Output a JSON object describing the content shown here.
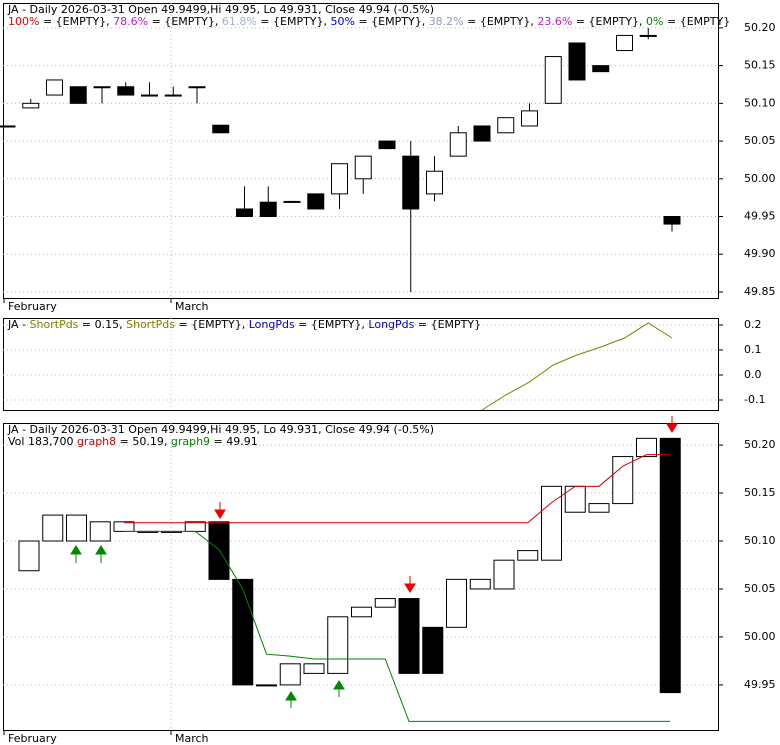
{
  "chart_data": [
    {
      "type": "candlestick",
      "header": [
        [
          {
            "text": "JA - Daily 2026-03-31 Open 49.9499,Hi 49.95, Lo 49.931, Close 49.94 (-0.5%)",
            "color": "#000000"
          }
        ],
        [
          {
            "text": "100%",
            "color": "#e00000"
          },
          {
            "text": " = {EMPTY}, ",
            "color": "#000000"
          },
          {
            "text": "78.6%",
            "color": "#c020c0"
          },
          {
            "text": " = {EMPTY}, ",
            "color": "#000000"
          },
          {
            "text": "61.8%",
            "color": "#a0b4c8"
          },
          {
            "text": " = {EMPTY}, ",
            "color": "#000000"
          },
          {
            "text": "50%",
            "color": "#0000e0"
          },
          {
            "text": " = {EMPTY}, ",
            "color": "#000000"
          },
          {
            "text": "38.2%",
            "color": "#90a0c0"
          },
          {
            "text": " = {EMPTY}, ",
            "color": "#000000"
          },
          {
            "text": "23.6%",
            "color": "#c020c0"
          },
          {
            "text": " = {EMPTY}, ",
            "color": "#000000"
          },
          {
            "text": "0%",
            "color": "#008000"
          },
          {
            "text": " = {EMPTY}",
            "color": "#000000"
          }
        ]
      ],
      "x_labels": [
        "February",
        "March"
      ],
      "open": [
        50.07,
        50.094,
        50.111,
        50.122,
        50.122,
        50.122,
        50.111,
        50.111,
        50.122,
        50.071,
        49.96,
        49.969,
        49.97,
        49.98,
        49.98,
        50.0,
        50.05,
        50.03,
        49.98,
        50.03,
        50.07,
        50.061,
        50.07,
        50.1,
        50.18,
        50.15,
        50.17,
        50.19,
        49.95
      ],
      "high": [
        50.07,
        50.106,
        50.131,
        50.122,
        50.122,
        50.128,
        50.128,
        50.122,
        50.122,
        50.071,
        49.99,
        49.99,
        49.97,
        49.98,
        50.02,
        50.03,
        50.05,
        50.05,
        50.03,
        50.07,
        50.07,
        50.081,
        50.1,
        50.162,
        50.18,
        50.15,
        50.19,
        50.2,
        49.95
      ],
      "low": [
        50.07,
        50.094,
        50.111,
        50.1,
        50.1,
        50.111,
        50.111,
        50.111,
        50.1,
        50.061,
        49.95,
        49.95,
        49.97,
        49.96,
        49.96,
        49.98,
        50.04,
        49.85,
        49.97,
        50.03,
        50.05,
        50.061,
        50.07,
        50.1,
        50.131,
        50.142,
        50.17,
        50.185,
        49.93
      ],
      "close": [
        50.07,
        50.1,
        50.131,
        50.1,
        50.122,
        50.111,
        50.111,
        50.111,
        50.122,
        50.061,
        49.95,
        49.95,
        49.97,
        49.96,
        50.02,
        50.03,
        50.04,
        49.96,
        50.01,
        50.061,
        50.05,
        50.081,
        50.09,
        50.162,
        50.131,
        50.142,
        50.19,
        50.19,
        49.94
      ],
      "ylim": [
        49.842,
        50.233
      ],
      "yticks": [
        {
          "value": 50.2,
          "label": "50.20"
        },
        50.15,
        {
          "value": 50.1,
          "label": "50.10"
        },
        50.05,
        {
          "value": 50.0,
          "label": "50.00"
        },
        49.95,
        {
          "value": 49.9,
          "label": "49.90"
        },
        49.85
      ],
      "grid": true
    },
    {
      "type": "line",
      "header": [
        [
          {
            "text": "JA - ",
            "color": "#000000"
          },
          {
            "text": "ShortPds",
            "color": "#808000"
          },
          {
            "text": " = 0.15, ",
            "color": "#000000"
          },
          {
            "text": "ShortPds",
            "color": "#808000"
          },
          {
            "text": " = {EMPTY}, ",
            "color": "#000000"
          },
          {
            "text": "LongPds",
            "color": "#0000c0"
          },
          {
            "text": " = {EMPTY}, ",
            "color": "#000000"
          },
          {
            "text": "LongPds",
            "color": "#0000c0"
          },
          {
            "text": " = {EMPTY}",
            "color": "#000000"
          }
        ]
      ],
      "series": [
        {
          "color": "#808000",
          "values": [
            null,
            null,
            null,
            null,
            null,
            null,
            null,
            null,
            null,
            null,
            null,
            null,
            null,
            null,
            null,
            null,
            null,
            null,
            null,
            null,
            -0.14,
            -0.08,
            -0.028,
            0.04,
            0.08,
            0.112,
            0.148,
            0.208,
            0.148
          ]
        }
      ],
      "ylim": [
        -0.14,
        0.228
      ],
      "yticks": [
        0.2,
        0.1,
        {
          "value": 0.0,
          "label": "0.0"
        },
        -0.1
      ],
      "grid": true
    },
    {
      "type": "candlestick",
      "header": [
        [
          {
            "text": "JA - Daily 2026-03-31 Open 49.9499,Hi 49.95, Lo 49.931, Close 49.94 (-0.5%)",
            "color": "#000000"
          }
        ],
        [
          {
            "text": "Vol 183,700 ",
            "color": "#000000"
          },
          {
            "text": "graph8",
            "color": "#d00000"
          },
          {
            "text": " = 50.19, ",
            "color": "#000000"
          },
          {
            "text": "graph9",
            "color": "#008000"
          },
          {
            "text": " = 49.91",
            "color": "#000000"
          }
        ]
      ],
      "x_labels": [
        "February",
        "March"
      ],
      "open": [
        50.069,
        50.1,
        50.1,
        50.1,
        50.11,
        50.11,
        50.11,
        50.11,
        50.12,
        50.06,
        49.95,
        49.95,
        49.962,
        49.962,
        50.021,
        50.031,
        50.04,
        50.01,
        50.01,
        50.05,
        50.05,
        50.08,
        50.08,
        50.13,
        50.13,
        50.139,
        50.188,
        50.207
      ],
      "close": [
        50.1,
        50.127,
        50.127,
        50.12,
        50.12,
        50.11,
        50.11,
        50.12,
        50.06,
        49.95,
        49.95,
        49.972,
        49.972,
        50.021,
        50.031,
        50.04,
        49.962,
        49.962,
        50.06,
        50.06,
        50.08,
        50.09,
        50.157,
        50.157,
        50.139,
        50.188,
        50.207,
        49.942
      ],
      "series": [
        {
          "color": "#d00000",
          "values": [
            null,
            null,
            null,
            null,
            50.119,
            50.119,
            50.119,
            50.119,
            50.119,
            50.119,
            50.119,
            50.119,
            50.119,
            50.119,
            50.119,
            50.119,
            50.119,
            50.119,
            50.119,
            50.119,
            50.119,
            50.119,
            50.14,
            50.157,
            50.157,
            50.178,
            50.19,
            50.19
          ]
        },
        {
          "color": "#008000",
          "values": [
            null,
            null,
            null,
            null,
            50.11,
            50.11,
            50.11,
            50.11,
            50.091,
            50.05,
            49.982,
            49.98,
            49.977,
            49.977,
            49.977,
            49.977,
            49.912,
            49.912,
            49.912,
            49.912,
            49.912,
            49.912,
            49.912,
            49.912,
            49.912,
            49.912,
            49.912,
            49.912
          ]
        }
      ],
      "ylim": [
        49.903,
        50.223
      ],
      "yticks": [
        {
          "value": 50.2,
          "label": "50.20"
        },
        50.15,
        {
          "value": 50.1,
          "label": "50.10"
        },
        50.05,
        {
          "value": 50.0,
          "label": "50.00"
        },
        49.95
      ],
      "grid": true
    }
  ]
}
